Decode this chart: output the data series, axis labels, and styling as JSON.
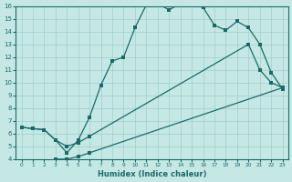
{
  "xlabel": "Humidex (Indice chaleur)",
  "xlim": [
    -0.5,
    23.5
  ],
  "ylim": [
    4,
    16
  ],
  "xticks": [
    0,
    1,
    2,
    3,
    4,
    5,
    6,
    7,
    8,
    9,
    10,
    11,
    12,
    13,
    14,
    15,
    16,
    17,
    18,
    19,
    20,
    21,
    22,
    23
  ],
  "yticks": [
    4,
    5,
    6,
    7,
    8,
    9,
    10,
    11,
    12,
    13,
    14,
    15,
    16
  ],
  "bg_color": "#c5e8e5",
  "grid_color": "#9fcfcc",
  "line_color": "#1a6b68",
  "line1_x": [
    0,
    1,
    2,
    3,
    4,
    5,
    6,
    7,
    8,
    9,
    10,
    11,
    12,
    13,
    14,
    15,
    16,
    17,
    18,
    19,
    20,
    21,
    22,
    23
  ],
  "line1_y": [
    6.5,
    6.4,
    6.3,
    5.5,
    4.5,
    5.5,
    7.3,
    9.8,
    11.7,
    12.0,
    14.3,
    16.1,
    16.2,
    15.7,
    16.2,
    16.1,
    15.9,
    14.5,
    14.1,
    14.8,
    14.3,
    13.0,
    10.8,
    9.5
  ],
  "line2_x": [
    0,
    1,
    2,
    3,
    4,
    5,
    6,
    20,
    21,
    22,
    23
  ],
  "line2_y": [
    6.5,
    6.4,
    6.3,
    5.5,
    5.0,
    5.3,
    5.8,
    13.0,
    11.0,
    10.0,
    9.6
  ],
  "line3_x": [
    3,
    4,
    5,
    6,
    23
  ],
  "line3_y": [
    4.0,
    4.0,
    4.2,
    4.5,
    9.6
  ],
  "figsize": [
    3.2,
    2.0
  ],
  "dpi": 100
}
